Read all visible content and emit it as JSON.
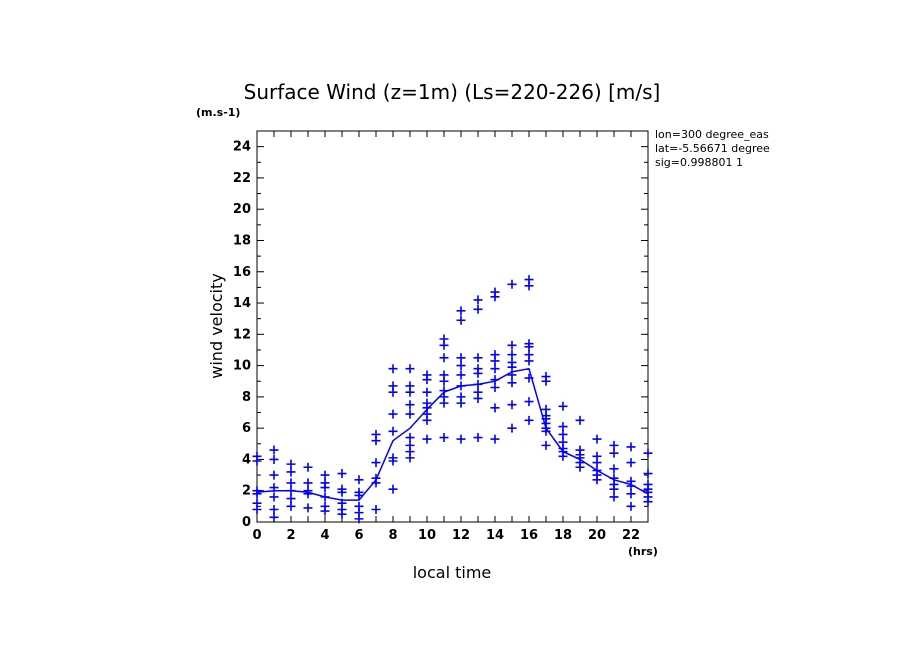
{
  "chart_data": {
    "type": "scatter",
    "title": "Surface Wind (z=1m) (Ls=220-226) [m/s]",
    "xlabel": "local time",
    "ylabel": "wind velocity",
    "x_unit": "(hrs)",
    "y_unit": "(m.s-1)",
    "xlim": [
      0,
      23
    ],
    "ylim": [
      0,
      25
    ],
    "x_ticks": [
      0,
      2,
      4,
      6,
      8,
      10,
      12,
      14,
      16,
      18,
      20,
      22
    ],
    "y_ticks": [
      0,
      2,
      4,
      6,
      8,
      10,
      12,
      14,
      16,
      18,
      20,
      22,
      24
    ],
    "grid": false,
    "annotations": [
      "lon=300 degree_eas",
      "lat=-5.56671 degree",
      "sig=0.998801 1"
    ],
    "color": "#0000ff",
    "x": [
      0,
      1,
      2,
      3,
      4,
      5,
      6,
      7,
      8,
      9,
      10,
      11,
      12,
      13,
      14,
      15,
      16,
      17,
      18,
      19,
      20,
      21,
      22,
      23
    ],
    "mean": [
      1.9,
      2.0,
      2.0,
      1.9,
      1.6,
      1.4,
      1.4,
      2.7,
      5.2,
      6.0,
      7.2,
      8.3,
      8.7,
      8.8,
      9.0,
      9.6,
      9.8,
      6.0,
      4.5,
      4.0,
      3.3,
      2.7,
      2.4,
      1.8
    ],
    "samples": [
      [
        4.2,
        3.9,
        2.0,
        1.8,
        1.2,
        0.8
      ],
      [
        4.6,
        4.0,
        3.0,
        2.2,
        1.6,
        0.8,
        0.3
      ],
      [
        3.7,
        3.2,
        2.5,
        2.0,
        1.5,
        1.0
      ],
      [
        3.5,
        2.5,
        2.0,
        1.8,
        0.9
      ],
      [
        3.0,
        2.5,
        2.2,
        1.6,
        1.0,
        0.7
      ],
      [
        3.1,
        2.1,
        1.9,
        1.2,
        0.8,
        0.5
      ],
      [
        2.7,
        1.9,
        1.7,
        1.0,
        0.6,
        0.2
      ],
      [
        5.6,
        5.2,
        3.8,
        2.8,
        2.5,
        0.8
      ],
      [
        9.8,
        8.7,
        8.3,
        6.9,
        5.8,
        4.1,
        3.9,
        2.1
      ],
      [
        9.8,
        8.7,
        8.3,
        7.5,
        6.9,
        5.4,
        4.9,
        4.5,
        4.1
      ],
      [
        9.4,
        9.1,
        8.3,
        7.6,
        7.3,
        6.9,
        6.5,
        5.3
      ],
      [
        11.7,
        11.3,
        10.5,
        9.4,
        9.0,
        8.4,
        8.0,
        7.6,
        5.4
      ],
      [
        13.5,
        12.9,
        10.5,
        10.0,
        9.4,
        8.7,
        8.0,
        7.6,
        5.3
      ],
      [
        14.2,
        13.6,
        10.5,
        9.8,
        9.5,
        8.8,
        8.3,
        7.9,
        5.4
      ],
      [
        14.7,
        14.4,
        10.7,
        10.3,
        9.8,
        9.1,
        8.6,
        7.3,
        5.3
      ],
      [
        15.2,
        11.3,
        10.7,
        10.2,
        9.9,
        9.4,
        8.9,
        7.5,
        6.0
      ],
      [
        15.5,
        15.1,
        11.4,
        11.2,
        10.7,
        10.3,
        9.2,
        7.7,
        6.5
      ],
      [
        9.3,
        9.0,
        7.2,
        6.8,
        6.6,
        6.3,
        6.0,
        5.8,
        4.9
      ],
      [
        7.4,
        6.1,
        5.6,
        5.1,
        4.7,
        4.5,
        4.2
      ],
      [
        6.5,
        4.6,
        4.3,
        4.1,
        3.8,
        3.5
      ],
      [
        5.3,
        4.2,
        3.8,
        3.3,
        3.0,
        2.7
      ],
      [
        4.9,
        4.4,
        3.4,
        2.8,
        2.4,
        2.1,
        1.6
      ],
      [
        4.8,
        3.8,
        2.6,
        2.3,
        1.8,
        1.0
      ],
      [
        4.4,
        3.1,
        2.4,
        2.1,
        1.9,
        1.6,
        1.3
      ]
    ]
  }
}
